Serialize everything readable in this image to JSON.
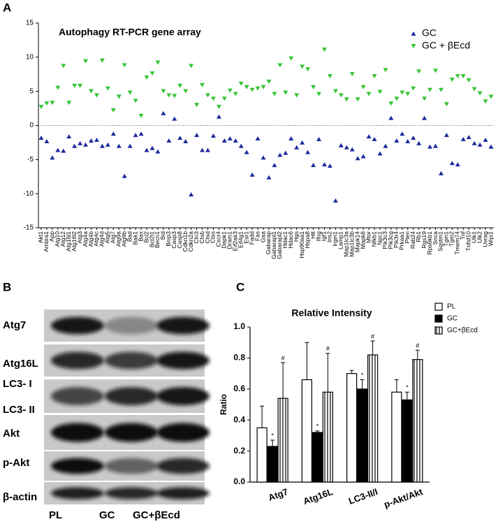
{
  "chart_data": [
    {
      "panel": "A",
      "type": "scatter",
      "title": "Autophagy RT-PCR gene array",
      "categories": [
        "Akt1",
        "Ambra1",
        "App",
        "Atg10",
        "Atg12",
        "Atg16l1",
        "Atg16l2",
        "Atg3",
        "Atg4a",
        "Atg4b",
        "Atg4c",
        "Atg4d",
        "Atg5",
        "Atg7",
        "Atg9a",
        "Atg9b",
        "Bad",
        "Bak1",
        "Bax",
        "Bcl2",
        "Bcl2l1",
        "Becn1",
        "Bid",
        "Bnip3",
        "Casp3",
        "Casp8",
        "Cdkn1b",
        "Cdkn2a",
        "Cln3",
        "Ctsb",
        "Ctsd",
        "Ctss",
        "Cxcr4",
        "Dapk1",
        "Dram1",
        "Eif2ak3",
        "Eif4g1",
        "Esr1",
        "Fadd",
        "Fas",
        "Gaa",
        "Gabarap",
        "Gabarapl1",
        "Gabarapl2",
        "Hdac1",
        "Hdac6",
        "Hgs",
        "Hsp90aa1",
        "Hspa8",
        "Htt",
        "Ifng",
        "Igf1",
        "Ins2",
        "Irgm1",
        "Lamp1",
        "Map1lc3a",
        "Map1lc3b",
        "Mapk14",
        "Mapk8",
        "Mtor",
        "Nfkb1",
        "Npc1",
        "Pik3c3",
        "Pik3cg",
        "Pik3r4",
        "Prkaa1",
        "Pten",
        "Rab24",
        "Rb1",
        "Rgs19",
        "Rps6kb1",
        "Snca",
        "Sqstm1",
        "Tgm1",
        "Tgm2",
        "Tmem74",
        "Tnf",
        "Tnfsf10",
        "Ulk1",
        "Ulk2",
        "Uvrag",
        "Wipi1"
      ],
      "series": [
        {
          "name": "GC",
          "color": "#1c2a9c",
          "marker": "triangle-up",
          "values": [
            -1.8,
            -2.3,
            -4.7,
            -3.6,
            -3.7,
            -1.6,
            -3.0,
            -2.6,
            -2.8,
            -2.2,
            -2.1,
            -3.0,
            -2.8,
            -1.2,
            -3.0,
            -7.4,
            -3.0,
            -1.4,
            -1.2,
            -3.6,
            -3.3,
            -3.8,
            1.8,
            -2.2,
            1.0,
            -1.8,
            -2.3,
            -10.1,
            -1.4,
            -3.6,
            -3.6,
            -1.5,
            1.3,
            -2.2,
            -1.9,
            -2.2,
            -3.0,
            -3.9,
            -7.2,
            -1.9,
            -4.7,
            -7.6,
            -5.8,
            -4.3,
            -4.0,
            -1.9,
            -3.2,
            -2.5,
            -3.9,
            -5.8,
            -2.0,
            -5.7,
            -5.9,
            -11.0,
            -2.9,
            -3.2,
            -3.5,
            -4.8,
            -4.5,
            -1.6,
            -2.0,
            -4.1,
            -3.0,
            1.1,
            -2.2,
            -1.2,
            -2.3,
            -1.8,
            -2.6,
            1.1,
            -3.1,
            -3.0,
            -7.0,
            -1.4,
            -5.5,
            -5.7,
            -2.0,
            -1.7,
            -2.6,
            -2.8,
            -2.1,
            -3.1
          ]
        },
        {
          "name": "GC + βEcd",
          "color": "#35c435",
          "marker": "triangle-down",
          "values": [
            2.7,
            3.2,
            3.3,
            5.5,
            8.7,
            3.3,
            5.8,
            5.8,
            9.4,
            5.0,
            4.4,
            9.5,
            5.4,
            2.2,
            4.2,
            8.8,
            4.8,
            3.6,
            1.4,
            7.0,
            7.6,
            9.2,
            5.0,
            4.4,
            4.3,
            5.8,
            5.0,
            8.7,
            3.0,
            5.9,
            4.4,
            3.9,
            2.7,
            3.9,
            5.1,
            4.6,
            6.1,
            5.6,
            5.2,
            5.4,
            5.6,
            6.4,
            4.6,
            8.8,
            4.8,
            9.8,
            4.4,
            8.6,
            8.2,
            5.6,
            4.6,
            11.1,
            7.2,
            5.0,
            4.4,
            3.8,
            7.5,
            3.8,
            5.6,
            4.6,
            7.2,
            4.9,
            8.1,
            3.2,
            3.9,
            4.8,
            4.6,
            5.4,
            7.9,
            3.9,
            5.2,
            8.0,
            5.2,
            3.1,
            6.7,
            7.2,
            7.2,
            6.6,
            5.3,
            4.7,
            3.5,
            4.2
          ]
        }
      ],
      "ylim": [
        -15,
        15
      ],
      "yticks": [
        -15,
        -10,
        -5,
        0,
        5,
        10,
        15
      ],
      "zero_line": true,
      "legend": "top-right"
    },
    {
      "panel": "C",
      "type": "bar",
      "title": "Relative Intensity",
      "y_label": "Ratio",
      "categories": [
        "Atg7",
        "Atg16L",
        "LC3-II/I",
        "p-Akt/Akt"
      ],
      "series": [
        {
          "name": "PL",
          "color": "#ffffff",
          "hatch": false,
          "values": [
            0.35,
            0.66,
            0.7,
            0.58
          ],
          "errors": [
            0.14,
            0.24,
            0.02,
            0.08
          ]
        },
        {
          "name": "GC",
          "color": "#000000",
          "hatch": false,
          "values": [
            0.23,
            0.32,
            0.6,
            0.53
          ],
          "errors": [
            0.04,
            0.01,
            0.06,
            0.05
          ],
          "annotations": [
            "*",
            "*",
            "*",
            "*"
          ]
        },
        {
          "name": "GC+βEcd",
          "color": "#ffffff",
          "hatch": true,
          "values": [
            0.54,
            0.58,
            0.82,
            0.79
          ],
          "errors": [
            0.23,
            0.25,
            0.09,
            0.06
          ],
          "annotations": [
            "#",
            "#",
            "#",
            "#"
          ]
        }
      ],
      "ylim": [
        0,
        1.0
      ],
      "yticks": [
        {
          "value": 0,
          "label": "0.0"
        },
        {
          "value": 0.2,
          "label": "0.2"
        },
        {
          "value": 0.4,
          "label": "0.4"
        },
        {
          "value": 0.6,
          "label": "0.6"
        },
        {
          "value": 0.8,
          "label": "0.8"
        },
        {
          "value": 1.0,
          "label": "1.0"
        }
      ],
      "legend": "top-right"
    }
  ],
  "blot": {
    "panel": "B",
    "rows": [
      "Atg7",
      "Atg16L",
      "LC3- I",
      "LC3- II",
      "Akt",
      "p-Akt",
      "β-actin"
    ],
    "lanes": [
      "PL",
      "GC",
      "GC+βEcd"
    ]
  }
}
